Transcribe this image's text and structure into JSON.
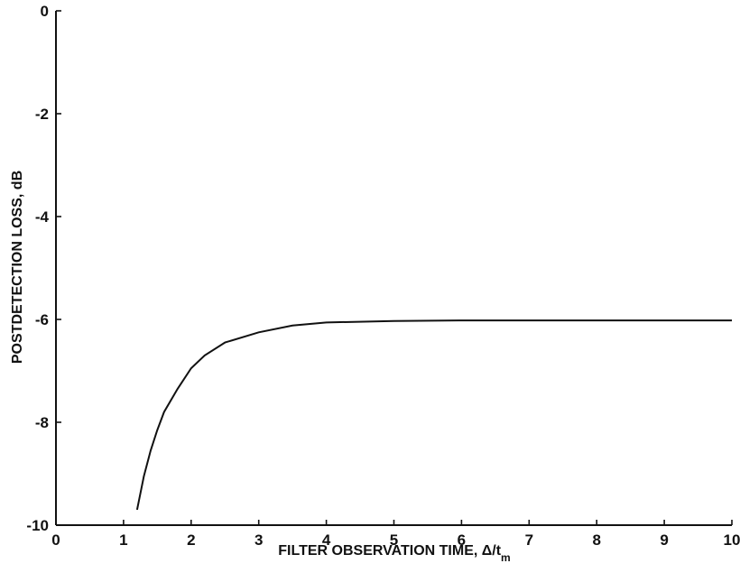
{
  "chart_data": {
    "type": "line",
    "title": "",
    "xlabel": "FILTER OBSERVATION TIME, Δ/t",
    "xlabel_subscript": "m",
    "ylabel": "POSTDETECTION LOSS, dB",
    "xlim": [
      0,
      10
    ],
    "ylim": [
      -10,
      0
    ],
    "xticks": [
      0,
      1,
      2,
      3,
      4,
      5,
      6,
      7,
      8,
      9,
      10
    ],
    "yticks": [
      0,
      -2,
      -4,
      -6,
      -8,
      -10
    ],
    "grid": false,
    "legend": "none",
    "series": [
      {
        "x": [
          1.2,
          1.3,
          1.4,
          1.5,
          1.6,
          1.8,
          2.0,
          2.2,
          2.5,
          3.0,
          3.5,
          4.0,
          5.0,
          6.0,
          7.0,
          8.0,
          9.0,
          10.0
        ],
        "y": [
          -9.7,
          -9.05,
          -8.55,
          -8.15,
          -7.8,
          -7.35,
          -6.95,
          -6.7,
          -6.45,
          -6.25,
          -6.12,
          -6.06,
          -6.03,
          -6.02,
          -6.02,
          -6.02,
          -6.02,
          -6.02
        ]
      }
    ]
  }
}
